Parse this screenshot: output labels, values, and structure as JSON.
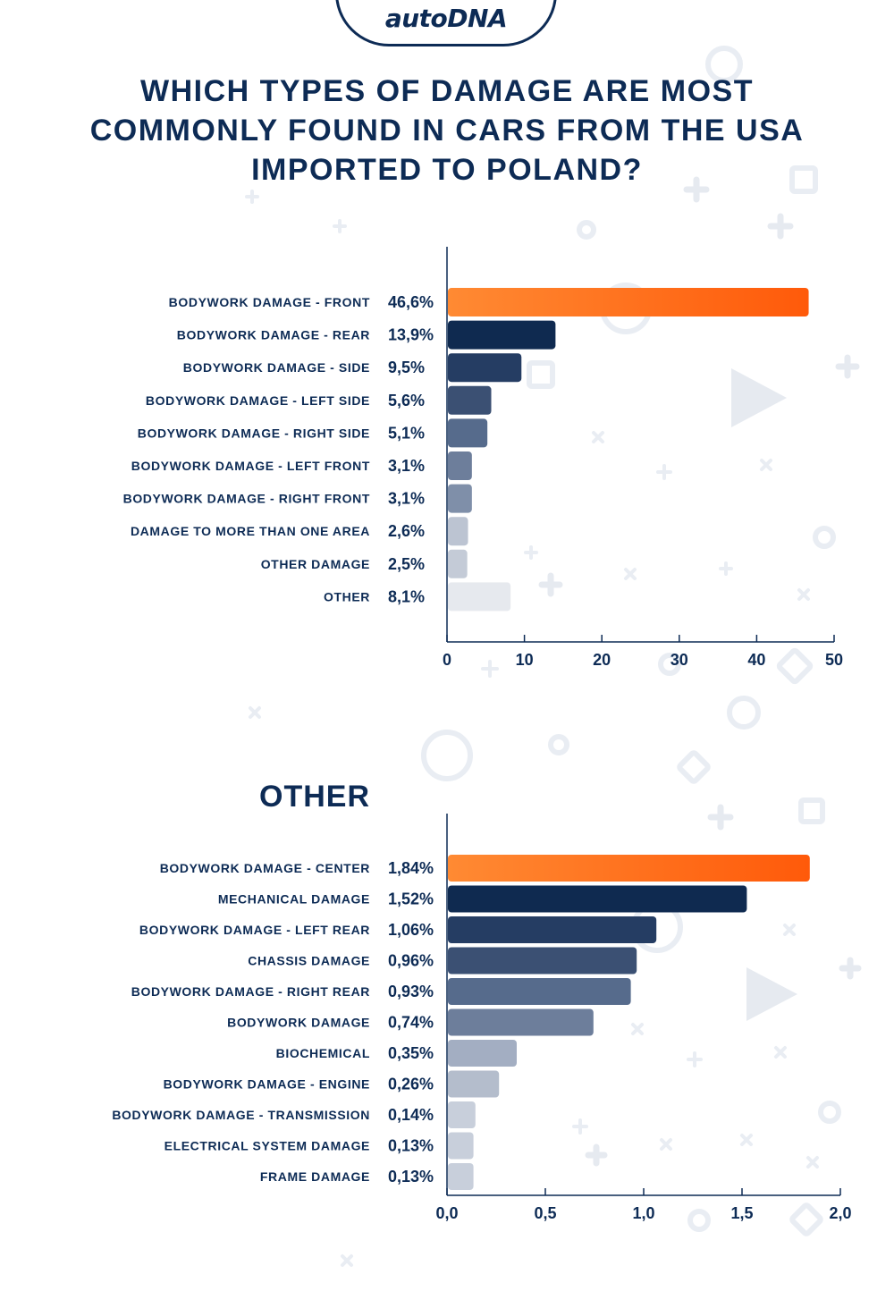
{
  "brand": {
    "logo": "autoDNA"
  },
  "title": "WHICH TYPES OF DAMAGE ARE MOST COMMONLY FOUND IN CARS FROM THE USA IMPORTED TO POLAND?",
  "colors": {
    "accent": "#ff5a0a",
    "accent_light": "#ff8a33",
    "navy": "#0d2b55",
    "bar_shades": [
      "#0f2a50",
      "#253d63",
      "#3b5073",
      "#566b8c",
      "#6d7e9b",
      "#7f8fa9",
      "#bcc4d2",
      "#c4cbd7",
      "#e6e9ee"
    ],
    "bar_shades_2": [
      "#0f2a50",
      "#253d63",
      "#3b5073",
      "#566b8c",
      "#6d7e9b",
      "#a3aec2",
      "#b4bdcc",
      "#c8cfdb",
      "#c8cfdb",
      "#c8cfdb"
    ]
  },
  "chart_data": [
    {
      "type": "bar",
      "orientation": "horizontal",
      "title": "",
      "categories": [
        "BODYWORK DAMAGE - FRONT",
        "BODYWORK DAMAGE - REAR",
        "BODYWORK DAMAGE - SIDE",
        "BODYWORK DAMAGE - LEFT SIDE",
        "BODYWORK DAMAGE - RIGHT SIDE",
        "BODYWORK DAMAGE - LEFT FRONT",
        "BODYWORK DAMAGE - RIGHT FRONT",
        "DAMAGE TO MORE THAN ONE AREA",
        "OTHER DAMAGE",
        "OTHER"
      ],
      "values": [
        46.6,
        13.9,
        9.5,
        5.6,
        5.1,
        3.1,
        3.1,
        2.6,
        2.5,
        8.1
      ],
      "value_labels": [
        "46,6%",
        "13,9%",
        "9,5%",
        "5,6%",
        "5,1%",
        "3,1%",
        "3,1%",
        "2,6%",
        "2,5%",
        "8,1%"
      ],
      "xlim": [
        0,
        50
      ],
      "xticks": [
        0,
        10,
        20,
        30,
        40,
        50
      ],
      "xtick_labels": [
        "0",
        "10",
        "20",
        "30",
        "40",
        "50"
      ],
      "xlabel": "",
      "ylabel": "",
      "grid": false
    },
    {
      "type": "bar",
      "orientation": "horizontal",
      "title": "OTHER",
      "categories": [
        "BODYWORK DAMAGE - CENTER",
        "MECHANICAL DAMAGE",
        "BODYWORK DAMAGE - LEFT REAR",
        "CHASSIS DAMAGE",
        "BODYWORK DAMAGE - RIGHT REAR",
        "BODYWORK DAMAGE",
        "BIOCHEMICAL",
        "BODYWORK DAMAGE - ENGINE",
        "BODYWORK DAMAGE - TRANSMISSION",
        "ELECTRICAL SYSTEM DAMAGE",
        "FRAME DAMAGE"
      ],
      "values": [
        1.84,
        1.52,
        1.06,
        0.96,
        0.93,
        0.74,
        0.35,
        0.26,
        0.14,
        0.13,
        0.13
      ],
      "value_labels": [
        "1,84%",
        "1,52%",
        "1,06%",
        "0,96%",
        "0,93%",
        "0,74%",
        "0,35%",
        "0,26%",
        "0,14%",
        "0,13%",
        "0,13%"
      ],
      "xlim": [
        0,
        2.0
      ],
      "xticks": [
        0,
        0.5,
        1.0,
        1.5,
        2.0
      ],
      "xtick_labels": [
        "0,0",
        "0,5",
        "1,0",
        "1,5",
        "2,0"
      ],
      "xlabel": "",
      "ylabel": "",
      "grid": false
    }
  ]
}
